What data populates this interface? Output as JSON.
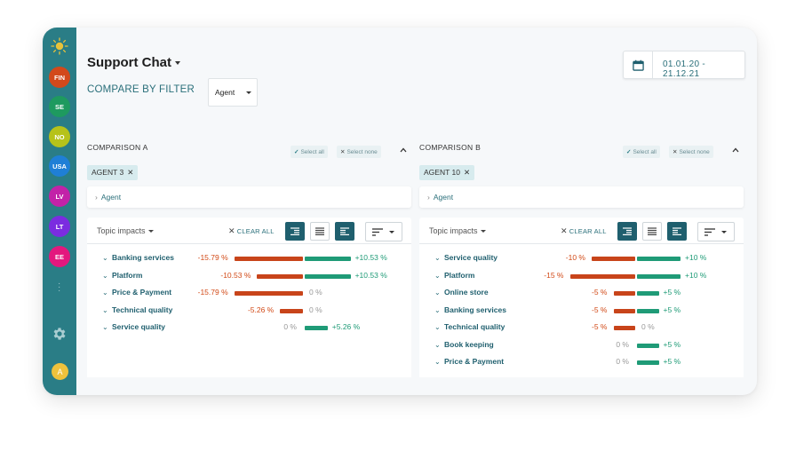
{
  "sidebar": {
    "logo": "sun-logo",
    "badges": [
      {
        "label": "FIN",
        "color": "#d2491b"
      },
      {
        "label": "SE",
        "color": "#1e9a5f"
      },
      {
        "label": "NO",
        "color": "#b6c21a"
      },
      {
        "label": "USA",
        "color": "#1f7fd6"
      },
      {
        "label": "LV",
        "color": "#c222a8"
      },
      {
        "label": "LT",
        "color": "#7b2ce0"
      },
      {
        "label": "EE",
        "color": "#e3177e"
      }
    ],
    "more_icon": "vertical-dots-icon",
    "settings_icon": "gear-icon",
    "avatar": {
      "label": "A",
      "color": "#efc23c"
    }
  },
  "header": {
    "title": "Support Chat",
    "compare_label": "COMPARE BY FILTER",
    "filter_select": "Agent",
    "date_range": "01.01.20 - 21.12.21",
    "calendar_icon": "calendar-icon"
  },
  "colors": {
    "accent": "#2a7d86",
    "negative": "#c8441a",
    "positive": "#1f9b77"
  },
  "comparisons": [
    {
      "title": "COMPARISON A",
      "select_all": "Select all",
      "select_none": "Select none",
      "chip": "AGENT 3",
      "filter_row": "Agent",
      "topic_impacts": "Topic impacts",
      "clear_all": "CLEAR ALL",
      "rows": [
        {
          "name": "Banking services",
          "neg": -15.79,
          "neg_label": "-15.79 %",
          "pos": 10.53,
          "pos_label": "+10.53 %"
        },
        {
          "name": "Platform",
          "neg": -10.53,
          "neg_label": "-10.53 %",
          "pos": 10.53,
          "pos_label": "+10.53 %"
        },
        {
          "name": "Price & Payment",
          "neg": -15.79,
          "neg_label": "-15.79 %",
          "pos": 0,
          "pos_label": "0 %"
        },
        {
          "name": "Technical quality",
          "neg": -5.26,
          "neg_label": "-5.26 %",
          "pos": 0,
          "pos_label": "0 %"
        },
        {
          "name": "Service quality",
          "neg": 0,
          "neg_label": "0 %",
          "pos": 5.26,
          "pos_label": "+5.26 %"
        }
      ]
    },
    {
      "title": "COMPARISON B",
      "select_all": "Select all",
      "select_none": "Select none",
      "chip": "AGENT 10",
      "filter_row": "Agent",
      "topic_impacts": "Topic impacts",
      "clear_all": "CLEAR ALL",
      "rows": [
        {
          "name": "Service quality",
          "neg": -10,
          "neg_label": "-10 %",
          "pos": 10,
          "pos_label": "+10 %"
        },
        {
          "name": "Platform",
          "neg": -15,
          "neg_label": "-15 %",
          "pos": 10,
          "pos_label": "+10 %"
        },
        {
          "name": "Online store",
          "neg": -5,
          "neg_label": "-5 %",
          "pos": 5,
          "pos_label": "+5 %"
        },
        {
          "name": "Banking services",
          "neg": -5,
          "neg_label": "-5 %",
          "pos": 5,
          "pos_label": "+5 %"
        },
        {
          "name": "Technical quality",
          "neg": -5,
          "neg_label": "-5 %",
          "pos": 0,
          "pos_label": "0 %"
        },
        {
          "name": "Book keeping",
          "neg": 0,
          "neg_label": "0 %",
          "pos": 5,
          "pos_label": "+5 %"
        },
        {
          "name": "Price & Payment",
          "neg": 0,
          "neg_label": "0 %",
          "pos": 5,
          "pos_label": "+5 %"
        }
      ]
    }
  ]
}
